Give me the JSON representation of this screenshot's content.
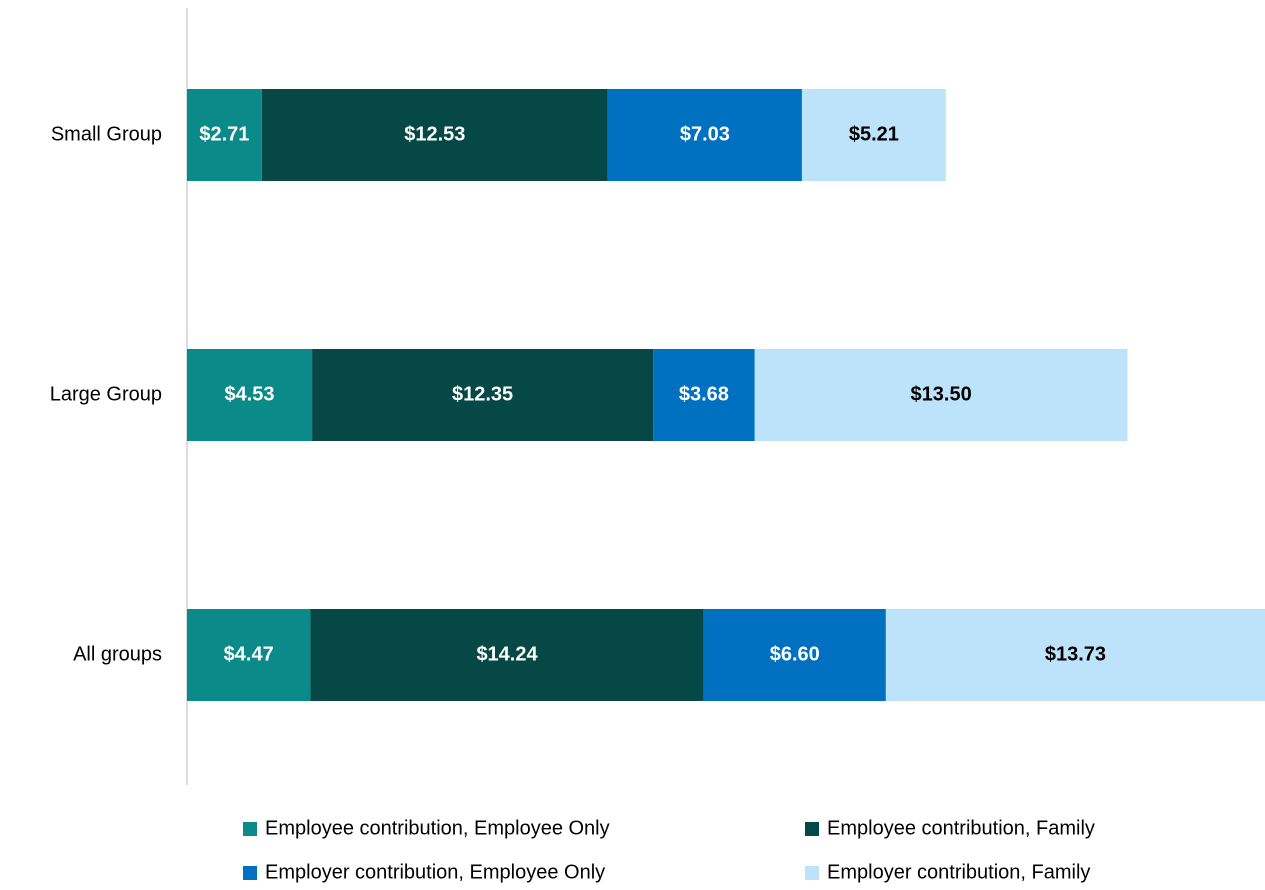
{
  "chart_data": {
    "type": "stacked_barh",
    "categories": [
      "Small Group",
      "Large Group",
      "All groups"
    ],
    "series": [
      {
        "name": "Employee contribution, Employee Only",
        "color": "#0a8a89",
        "label_color": "#ffffff",
        "values": [
          2.71,
          4.53,
          4.47
        ],
        "value_labels": [
          "$2.71",
          "$4.53",
          "$4.47"
        ]
      },
      {
        "name": "Employee contribution, Family",
        "color": "#054846",
        "label_color": "#ffffff",
        "values": [
          12.53,
          12.35,
          14.24
        ],
        "value_labels": [
          "$12.53",
          "$12.35",
          "$14.24"
        ]
      },
      {
        "name": "Employer contribution, Employee Only",
        "color": "#0070c0",
        "label_color": "#ffffff",
        "values": [
          7.03,
          3.68,
          6.6
        ],
        "value_labels": [
          "$7.03",
          "$3.68",
          "$6.60"
        ]
      },
      {
        "name": "Employer contribution, Family",
        "color": "#bde3fb",
        "label_color": "#000000",
        "values": [
          5.21,
          13.5,
          13.73
        ],
        "value_labels": [
          "$5.21",
          "$13.50",
          "$13.73"
        ]
      }
    ]
  }
}
